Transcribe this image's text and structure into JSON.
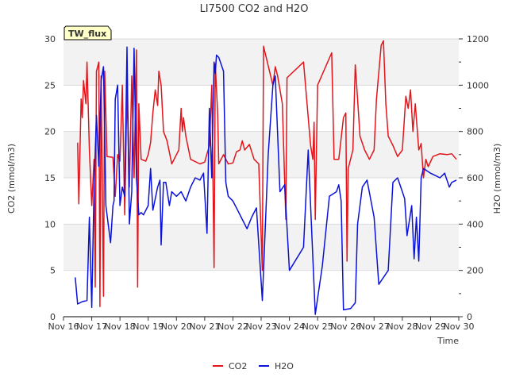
{
  "chart_data": {
    "type": "line",
    "title": "LI7500 CO2 and H2O",
    "xlabel": "Time",
    "ylabel_left": "CO2 (mmol/m3)",
    "ylabel_right": "H2O (mmol/m3)",
    "site_label": "TW_flux",
    "x_range_days": [
      "Nov 16",
      "Nov 30"
    ],
    "x_ticks": [
      "Nov 16",
      "Nov 17",
      "Nov 18",
      "Nov 19",
      "Nov 20",
      "Nov 21",
      "Nov 22",
      "Nov 23",
      "Nov 24",
      "Nov 25",
      "Nov 26",
      "Nov 27",
      "Nov 28",
      "Nov 29",
      "Nov 30"
    ],
    "ylim_left": [
      0,
      30
    ],
    "yticks_left": [
      "0",
      "5",
      "10",
      "15",
      "20",
      "25",
      "30"
    ],
    "ylim_right": [
      0,
      1200
    ],
    "yticks_right": [
      "0",
      "200",
      "400",
      "600",
      "800",
      "1000",
      "1200"
    ],
    "grid": "horizontal bands",
    "legend_position": "bottom-center",
    "series": [
      {
        "name": "CO2",
        "axis": "left",
        "color": "#e0161c",
        "points": [
          [
            "Nov 16 12:00",
            18.8
          ],
          [
            "Nov 16 13:00",
            12.2
          ],
          [
            "Nov 16 15:00",
            23.5
          ],
          [
            "Nov 16 16:00",
            21.5
          ],
          [
            "Nov 16 17:00",
            25.5
          ],
          [
            "Nov 16 19:00",
            23.0
          ],
          [
            "Nov 16 20:00",
            27.5
          ],
          [
            "Nov 16 22:00",
            18.0
          ],
          [
            "Nov 17 00:00",
            12.0
          ],
          [
            "Nov 17 02:00",
            17.0
          ],
          [
            "Nov 17 03:00",
            3.2
          ],
          [
            "Nov 17 04:00",
            26.5
          ],
          [
            "Nov 17 06:00",
            27.5
          ],
          [
            "Nov 17 07:00",
            1.1
          ],
          [
            "Nov 17 08:00",
            26.0
          ],
          [
            "Nov 17 10:00",
            2.2
          ],
          [
            "Nov 17 11:00",
            26.5
          ],
          [
            "Nov 17 13:00",
            17.3
          ],
          [
            "Nov 17 18:00",
            17.2
          ],
          [
            "Nov 17 20:00",
            13.0
          ],
          [
            "Nov 17 22:00",
            17.5
          ],
          [
            "Nov 18 00:00",
            16.8
          ],
          [
            "Nov 18 02:00",
            25.0
          ],
          [
            "Nov 18 04:00",
            11.0
          ],
          [
            "Nov 18 06:00",
            24.5
          ],
          [
            "Nov 18 08:00",
            14.0
          ],
          [
            "Nov 18 10:00",
            26.0
          ],
          [
            "Nov 18 12:00",
            15.0
          ],
          [
            "Nov 18 14:00",
            28.8
          ],
          [
            "Nov 18 15:00",
            3.2
          ],
          [
            "Nov 18 16:00",
            23.0
          ],
          [
            "Nov 18 18:00",
            17.0
          ],
          [
            "Nov 18 22:00",
            16.8
          ],
          [
            "Nov 19 00:00",
            17.5
          ],
          [
            "Nov 19 02:00",
            18.8
          ],
          [
            "Nov 19 04:00",
            22.0
          ],
          [
            "Nov 19 06:00",
            24.5
          ],
          [
            "Nov 19 08:00",
            22.8
          ],
          [
            "Nov 19 09:00",
            26.5
          ],
          [
            "Nov 19 11:00",
            25.0
          ],
          [
            "Nov 19 13:00",
            20.0
          ],
          [
            "Nov 19 16:00",
            19.0
          ],
          [
            "Nov 19 20:00",
            16.5
          ],
          [
            "Nov 20 00:00",
            17.5
          ],
          [
            "Nov 20 02:00",
            18.0
          ],
          [
            "Nov 20 04:00",
            22.5
          ],
          [
            "Nov 20 05:00",
            20.0
          ],
          [
            "Nov 20 06:00",
            21.5
          ],
          [
            "Nov 20 08:00",
            19.5
          ],
          [
            "Nov 20 12:00",
            17.0
          ],
          [
            "Nov 20 20:00",
            16.5
          ],
          [
            "Nov 21 00:00",
            16.7
          ],
          [
            "Nov 21 04:00",
            18.5
          ],
          [
            "Nov 21 06:00",
            25.0
          ],
          [
            "Nov 21 08:00",
            5.3
          ],
          [
            "Nov 21 09:00",
            27.3
          ],
          [
            "Nov 21 11:00",
            22.0
          ],
          [
            "Nov 21 12:00",
            16.5
          ],
          [
            "Nov 21 16:00",
            17.5
          ],
          [
            "Nov 21 20:00",
            16.5
          ],
          [
            "Nov 22 00:00",
            16.6
          ],
          [
            "Nov 22 03:00",
            17.8
          ],
          [
            "Nov 22 06:00",
            18.0
          ],
          [
            "Nov 22 08:00",
            19.0
          ],
          [
            "Nov 22 10:00",
            18.0
          ],
          [
            "Nov 22 14:00",
            18.6
          ],
          [
            "Nov 22 18:00",
            17.0
          ],
          [
            "Nov 22 22:00",
            16.5
          ],
          [
            "Nov 23 01:00",
            5.0
          ],
          [
            "Nov 23 02:00",
            29.2
          ],
          [
            "Nov 23 10:00",
            25.0
          ],
          [
            "Nov 23 12:00",
            27.0
          ],
          [
            "Nov 23 14:00",
            26.0
          ],
          [
            "Nov 23 18:00",
            23.0
          ],
          [
            "Nov 23 21:00",
            10.5
          ],
          [
            "Nov 23 22:00",
            25.8
          ],
          [
            "Nov 24 12:00",
            27.5
          ],
          [
            "Nov 24 18:00",
            18.5
          ],
          [
            "Nov 24 20:00",
            17.0
          ],
          [
            "Nov 24 21:00",
            21.0
          ],
          [
            "Nov 24 22:00",
            10.5
          ],
          [
            "Nov 25 00:00",
            25.0
          ],
          [
            "Nov 25 12:00",
            28.5
          ],
          [
            "Nov 25 14:00",
            17.0
          ],
          [
            "Nov 25 18:00",
            17.0
          ],
          [
            "Nov 25 22:00",
            21.5
          ],
          [
            "Nov 26 00:00",
            22.0
          ],
          [
            "Nov 26 01:00",
            6.0
          ],
          [
            "Nov 26 02:00",
            16.0
          ],
          [
            "Nov 26 06:00",
            18.0
          ],
          [
            "Nov 26 08:00",
            27.2
          ],
          [
            "Nov 26 10:00",
            23.5
          ],
          [
            "Nov 26 12:00",
            19.5
          ],
          [
            "Nov 26 16:00",
            18.0
          ],
          [
            "Nov 26 20:00",
            17.0
          ],
          [
            "Nov 27 00:00",
            18.0
          ],
          [
            "Nov 27 02:00",
            23.5
          ],
          [
            "Nov 27 06:00",
            29.3
          ],
          [
            "Nov 27 08:00",
            29.8
          ],
          [
            "Nov 27 10:00",
            23.0
          ],
          [
            "Nov 27 12:00",
            19.5
          ],
          [
            "Nov 27 16:00",
            18.5
          ],
          [
            "Nov 27 20:00",
            17.3
          ],
          [
            "Nov 28 00:00",
            18.0
          ],
          [
            "Nov 28 03:00",
            23.8
          ],
          [
            "Nov 28 05:00",
            22.5
          ],
          [
            "Nov 28 07:00",
            24.5
          ],
          [
            "Nov 28 09:00",
            20.0
          ],
          [
            "Nov 28 11:00",
            23.0
          ],
          [
            "Nov 28 14:00",
            18.0
          ],
          [
            "Nov 28 16:00",
            18.7
          ],
          [
            "Nov 28 18:00",
            15.0
          ],
          [
            "Nov 28 20:00",
            17.0
          ],
          [
            "Nov 28 22:00",
            16.2
          ],
          [
            "Nov 29 02:00",
            17.3
          ],
          [
            "Nov 29 08:00",
            17.6
          ],
          [
            "Nov 29 14:00",
            17.5
          ],
          [
            "Nov 29 18:00",
            17.6
          ],
          [
            "Nov 29 22:00",
            17.0
          ]
        ]
      },
      {
        "name": "H2O",
        "axis": "right",
        "color": "#0a12d8",
        "points": [
          [
            "Nov 16 10:00",
            170
          ],
          [
            "Nov 16 12:00",
            55
          ],
          [
            "Nov 16 16:00",
            65
          ],
          [
            "Nov 16 20:00",
            70
          ],
          [
            "Nov 16 22:00",
            430
          ],
          [
            "Nov 17 00:00",
            40
          ],
          [
            "Nov 17 02:00",
            560
          ],
          [
            "Nov 17 04:00",
            870
          ],
          [
            "Nov 17 06:00",
            650
          ],
          [
            "Nov 17 08:00",
            1020
          ],
          [
            "Nov 17 10:00",
            1080
          ],
          [
            "Nov 17 12:00",
            480
          ],
          [
            "Nov 17 14:00",
            400
          ],
          [
            "Nov 17 16:00",
            320
          ],
          [
            "Nov 17 18:00",
            480
          ],
          [
            "Nov 17 19:00",
            500
          ],
          [
            "Nov 17 20:00",
            940
          ],
          [
            "Nov 17 22:00",
            1000
          ],
          [
            "Nov 18 00:00",
            480
          ],
          [
            "Nov 18 02:00",
            560
          ],
          [
            "Nov 18 04:00",
            520
          ],
          [
            "Nov 18 06:00",
            1165
          ],
          [
            "Nov 18 08:00",
            400
          ],
          [
            "Nov 18 10:00",
            540
          ],
          [
            "Nov 18 12:00",
            1160
          ],
          [
            "Nov 18 14:00",
            600
          ],
          [
            "Nov 18 16:00",
            440
          ],
          [
            "Nov 18 18:00",
            450
          ],
          [
            "Nov 18 20:00",
            440
          ],
          [
            "Nov 19 00:00",
            480
          ],
          [
            "Nov 19 02:00",
            640
          ],
          [
            "Nov 19 04:00",
            460
          ],
          [
            "Nov 19 08:00",
            560
          ],
          [
            "Nov 19 10:00",
            590
          ],
          [
            "Nov 19 11:00",
            310
          ],
          [
            "Nov 19 13:00",
            580
          ],
          [
            "Nov 19 15:00",
            580
          ],
          [
            "Nov 19 18:00",
            480
          ],
          [
            "Nov 19 20:00",
            540
          ],
          [
            "Nov 20 00:00",
            520
          ],
          [
            "Nov 20 04:00",
            540
          ],
          [
            "Nov 20 08:00",
            500
          ],
          [
            "Nov 20 12:00",
            560
          ],
          [
            "Nov 20 16:00",
            600
          ],
          [
            "Nov 20 20:00",
            590
          ],
          [
            "Nov 20 23:00",
            620
          ],
          [
            "Nov 21 02:00",
            360
          ],
          [
            "Nov 21 04:00",
            900
          ],
          [
            "Nov 21 06:00",
            600
          ],
          [
            "Nov 21 08:00",
            1100
          ],
          [
            "Nov 21 09:00",
            1050
          ],
          [
            "Nov 21 10:00",
            1130
          ],
          [
            "Nov 21 12:00",
            1120
          ],
          [
            "Nov 21 16:00",
            1060
          ],
          [
            "Nov 21 18:00",
            580
          ],
          [
            "Nov 21 20:00",
            520
          ],
          [
            "Nov 22 00:00",
            500
          ],
          [
            "Nov 22 04:00",
            460
          ],
          [
            "Nov 22 08:00",
            420
          ],
          [
            "Nov 22 12:00",
            380
          ],
          [
            "Nov 22 16:00",
            430
          ],
          [
            "Nov 22 20:00",
            470
          ],
          [
            "Nov 23 01:00",
            70
          ],
          [
            "Nov 23 06:00",
            700
          ],
          [
            "Nov 23 10:00",
            1000
          ],
          [
            "Nov 23 12:00",
            1040
          ],
          [
            "Nov 23 16:00",
            540
          ],
          [
            "Nov 23 20:00",
            570
          ],
          [
            "Nov 24 00:00",
            200
          ],
          [
            "Nov 24 12:00",
            300
          ],
          [
            "Nov 24 16:00",
            720
          ],
          [
            "Nov 24 22:00",
            10
          ],
          [
            "Nov 25 04:00",
            220
          ],
          [
            "Nov 25 10:00",
            520
          ],
          [
            "Nov 25 16:00",
            540
          ],
          [
            "Nov 25 18:00",
            570
          ],
          [
            "Nov 25 20:00",
            500
          ],
          [
            "Nov 25 22:00",
            30
          ],
          [
            "Nov 26 04:00",
            35
          ],
          [
            "Nov 26 08:00",
            60
          ],
          [
            "Nov 26 10:00",
            400
          ],
          [
            "Nov 26 14:00",
            560
          ],
          [
            "Nov 26 18:00",
            590
          ],
          [
            "Nov 27 00:00",
            430
          ],
          [
            "Nov 27 04:00",
            140
          ],
          [
            "Nov 27 12:00",
            200
          ],
          [
            "Nov 27 16:00",
            580
          ],
          [
            "Nov 27 20:00",
            600
          ],
          [
            "Nov 28 00:00",
            540
          ],
          [
            "Nov 28 02:00",
            510
          ],
          [
            "Nov 28 04:00",
            350
          ],
          [
            "Nov 28 08:00",
            480
          ],
          [
            "Nov 28 10:00",
            250
          ],
          [
            "Nov 28 12:00",
            430
          ],
          [
            "Nov 28 14:00",
            240
          ],
          [
            "Nov 28 16:00",
            600
          ],
          [
            "Nov 28 18:00",
            640
          ],
          [
            "Nov 29 00:00",
            620
          ],
          [
            "Nov 29 04:00",
            610
          ],
          [
            "Nov 29 08:00",
            600
          ],
          [
            "Nov 29 12:00",
            620
          ],
          [
            "Nov 29 16:00",
            560
          ],
          [
            "Nov 29 18:00",
            580
          ],
          [
            "Nov 29 22:00",
            590
          ]
        ]
      }
    ]
  }
}
